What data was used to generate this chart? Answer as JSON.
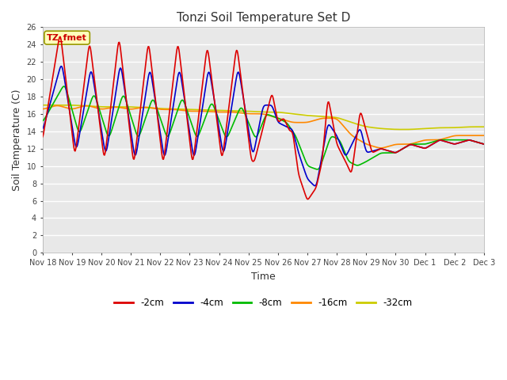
{
  "title": "Tonzi Soil Temperature Set D",
  "xlabel": "Time",
  "ylabel": "Soil Temperature (C)",
  "ylim": [
    0,
    26
  ],
  "yticks": [
    0,
    2,
    4,
    6,
    8,
    10,
    12,
    14,
    16,
    18,
    20,
    22,
    24,
    26
  ],
  "xtick_labels": [
    "Nov 18",
    "Nov 19",
    "Nov 20",
    "Nov 21",
    "Nov 22",
    "Nov 23",
    "Nov 24",
    "Nov 25",
    "Nov 26",
    "Nov 27",
    "Nov 28",
    "Nov 29",
    "Nov 30",
    "Dec 1",
    "Dec 2",
    "Dec 3"
  ],
  "legend_labels": [
    "-2cm",
    "-4cm",
    "-8cm",
    "-16cm",
    "-32cm"
  ],
  "legend_colors": [
    "#dd0000",
    "#0000cc",
    "#00bb00",
    "#ff8800",
    "#cccc00"
  ],
  "line_colors": {
    "d2cm": "#dd0000",
    "d4cm": "#0000cc",
    "d8cm": "#00bb00",
    "d16cm": "#ff8800",
    "d32cm": "#cccc00"
  },
  "annotation_text": "TZ_fmet",
  "annotation_box_color": "#ffffbb",
  "annotation_text_color": "#cc0000",
  "fig_bg_color": "#ffffff",
  "plot_bg_color": "#e8e8e8"
}
